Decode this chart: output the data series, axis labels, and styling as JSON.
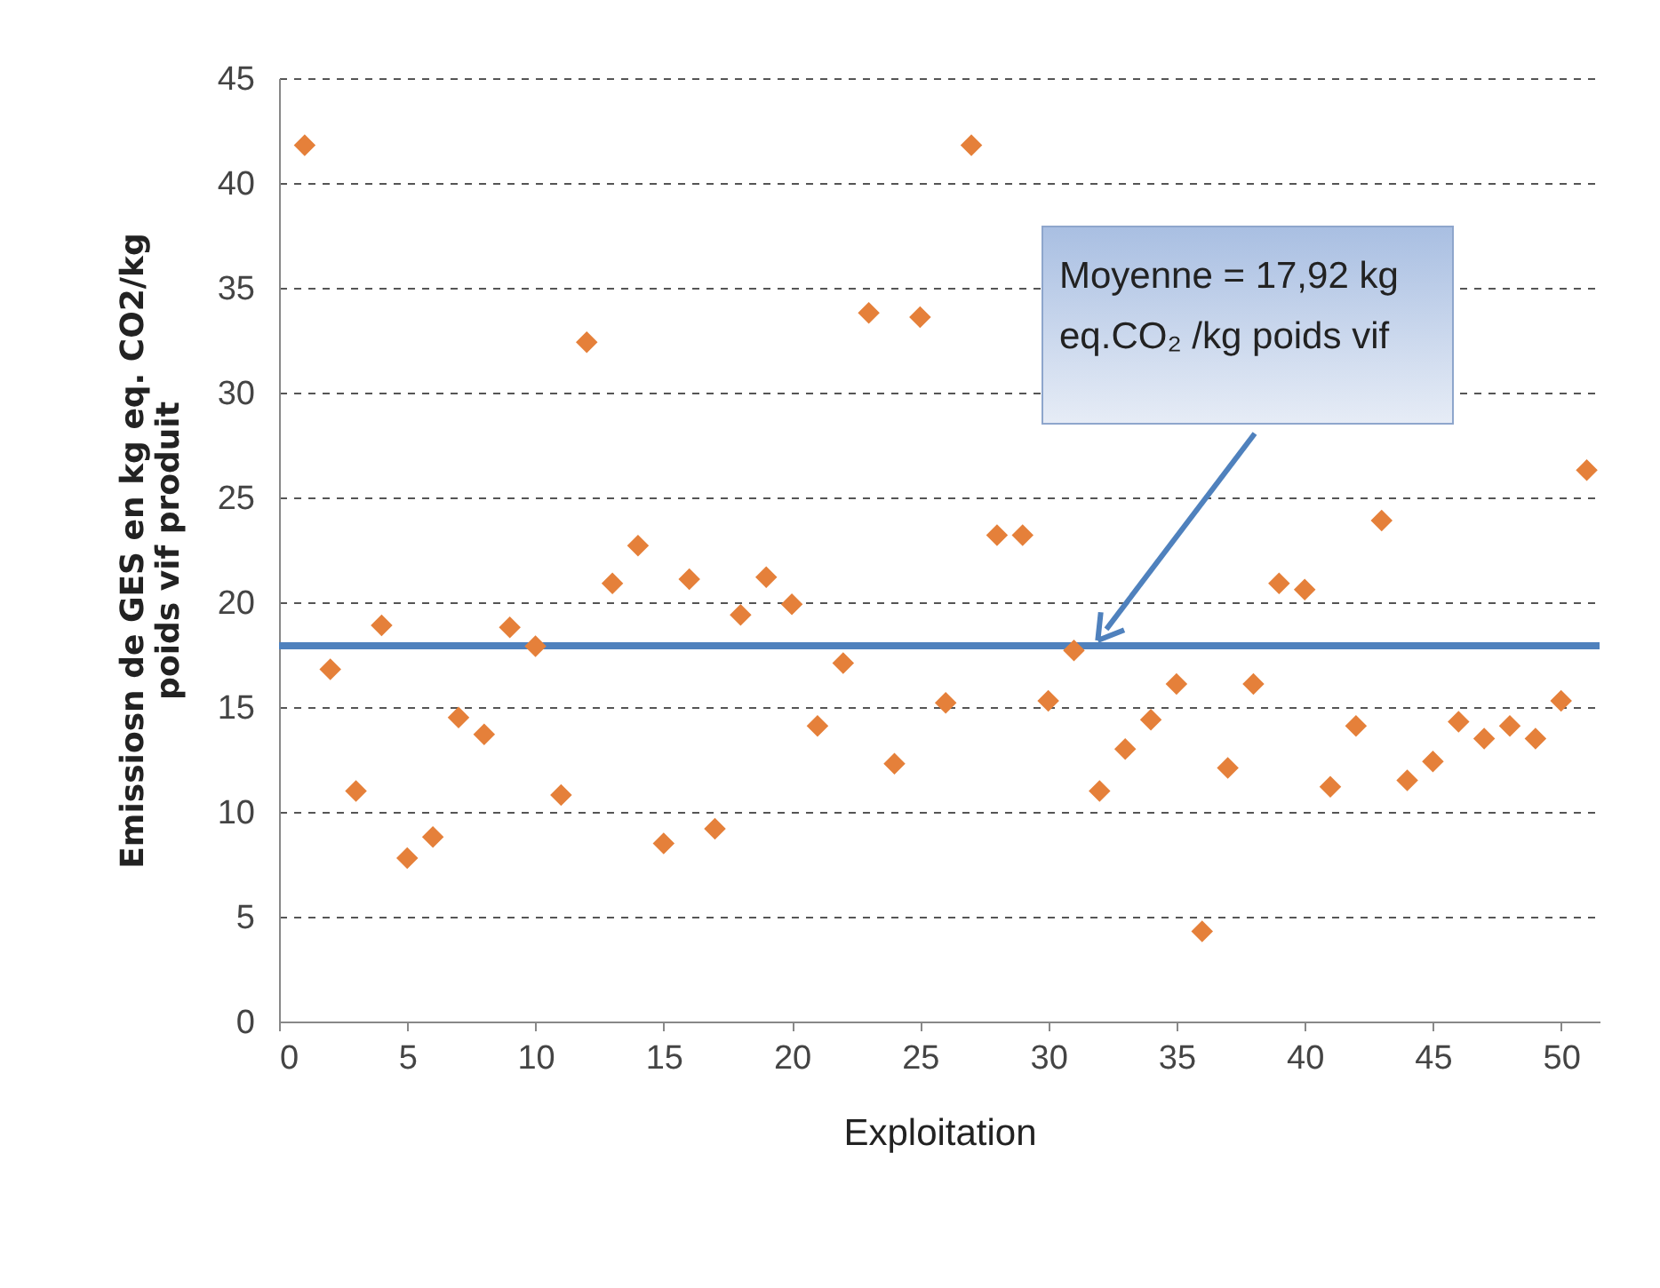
{
  "chart_data": {
    "type": "scatter",
    "xlabel": "Exploitation",
    "ylabel": "Emissiosn de GES en kg eq. CO2/kg\npoids vif produit",
    "x": [
      1,
      2,
      3,
      4,
      5,
      6,
      7,
      8,
      9,
      10,
      11,
      12,
      13,
      14,
      15,
      16,
      17,
      18,
      19,
      20,
      21,
      22,
      23,
      24,
      25,
      26,
      27,
      28,
      29,
      30,
      31,
      32,
      33,
      34,
      35,
      36,
      37,
      38,
      39,
      40,
      41,
      42,
      43,
      44,
      45,
      46,
      47,
      48,
      49,
      50,
      51
    ],
    "series": [
      {
        "color": "#e5803a",
        "values": [
          41.8,
          16.8,
          11,
          18.9,
          7.8,
          8.8,
          14.5,
          13.7,
          18.8,
          17.9,
          10.8,
          32.4,
          20.9,
          22.7,
          8.5,
          21.1,
          9.2,
          19.4,
          21.2,
          19.9,
          14.1,
          17.1,
          33.8,
          12.3,
          33.6,
          15.2,
          41.8,
          23.2,
          23.2,
          15.3,
          17.7,
          11,
          13,
          14.4,
          16.1,
          4.3,
          12.1,
          16.1,
          20.9,
          20.6,
          11.2,
          14.1,
          23.9,
          11.5,
          12.4,
          14.3,
          13.5,
          14.1,
          13.5,
          15.3,
          26.3
        ]
      }
    ],
    "marker": "diamond",
    "xlim": [
      0,
      51.5
    ],
    "xticks": [
      0,
      5,
      10,
      15,
      20,
      25,
      30,
      35,
      40,
      45,
      50
    ],
    "ylim": [
      0,
      45
    ],
    "yticks": [
      0,
      5,
      10,
      15,
      20,
      25,
      30,
      35,
      40,
      45
    ],
    "grid": "y",
    "ref_lines": [
      {
        "axis": "y",
        "value": 17.92,
        "color": "#4f81bd"
      }
    ],
    "annotations": [
      "Moyenne = 17,92 kg eq.CO₂ /kg poids vif"
    ]
  }
}
